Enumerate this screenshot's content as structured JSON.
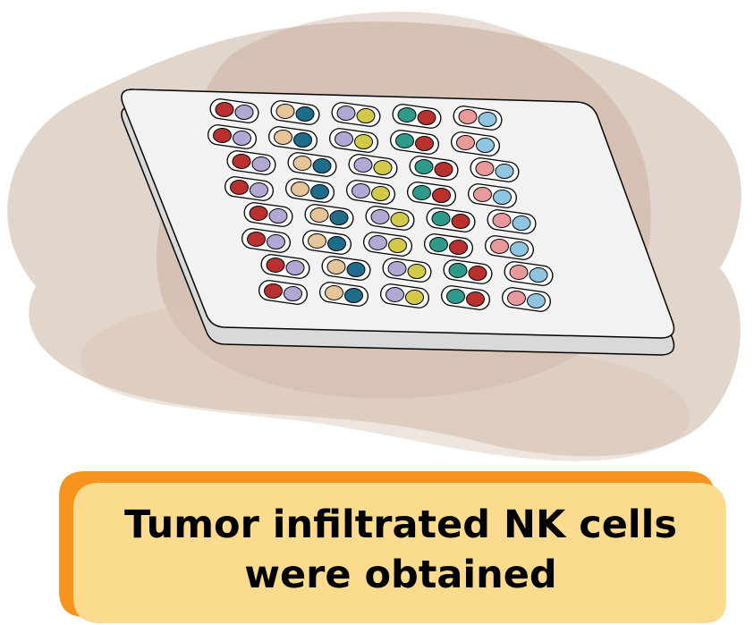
{
  "caption": {
    "line1": "Tumor infiltrated NK cells",
    "line2": "were obtained"
  },
  "colors": {
    "background_blob": "#cbb3a0",
    "plate_fill": "#f2f2f2",
    "plate_edge": "#d8d8d8",
    "caption_fill": "#fbdc8e",
    "caption_shadow": "#f7941d",
    "red": "#b8312f",
    "lavender": "#b2a8d3",
    "tan": "#e6c59a",
    "navy": "#1f6b8a",
    "olive": "#d2c84a",
    "teal": "#2e9a8a",
    "pink": "#e89a9a",
    "lightblue": "#8fc5e0"
  },
  "cell_pairs": [
    "red-lavender",
    "tan-navy",
    "lavender-olive",
    "teal-red",
    "pink-lightblue"
  ],
  "rows": 8,
  "columns": 5
}
